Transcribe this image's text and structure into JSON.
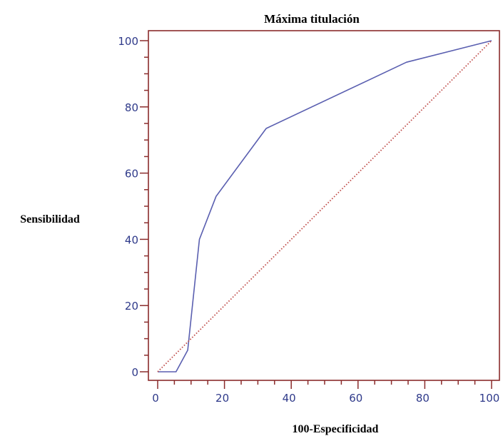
{
  "chart_data": {
    "type": "line",
    "title": "Máxima titulación",
    "xlabel": "100-Especificidad",
    "ylabel": "Sensibilidad",
    "xlim": [
      0,
      100
    ],
    "ylim": [
      0,
      100
    ],
    "x_ticks": [
      0,
      20,
      40,
      60,
      80,
      100
    ],
    "y_ticks": [
      0,
      20,
      40,
      60,
      80,
      100
    ],
    "grid": false,
    "legend": "none",
    "series": [
      {
        "role": "roc-curve",
        "color": "#5a5fb0",
        "style": "solid",
        "points": [
          [
            0,
            0
          ],
          [
            5.5,
            0
          ],
          [
            9,
            6.5
          ],
          [
            12.5,
            40
          ],
          [
            17.5,
            53
          ],
          [
            32.5,
            73.5
          ],
          [
            74.5,
            93.5
          ],
          [
            100,
            100
          ]
        ]
      },
      {
        "role": "diagonal-reference",
        "color": "#c0504d",
        "style": "dotted",
        "points": [
          [
            0,
            0
          ],
          [
            100,
            100
          ]
        ]
      }
    ],
    "colors": {
      "frame": "#8b2c2c",
      "tick_labels": "#2f3a8a"
    }
  }
}
